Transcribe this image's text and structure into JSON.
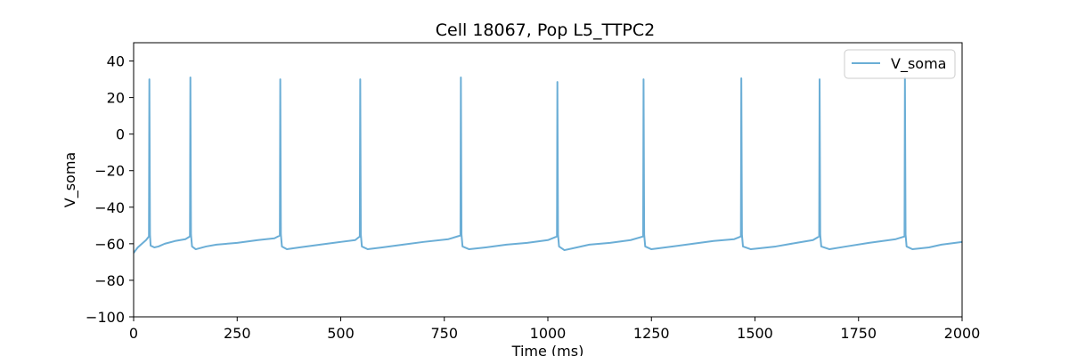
{
  "chart_data": {
    "type": "line",
    "title": "Cell 18067, Pop L5_TTPC2",
    "xlabel": "Time (ms)",
    "ylabel": "V_soma",
    "xlim": [
      0,
      2000
    ],
    "ylim": [
      -100,
      50
    ],
    "xticks": [
      0,
      250,
      500,
      750,
      1000,
      1250,
      1500,
      1750,
      2000
    ],
    "yticks": [
      -100,
      -80,
      -60,
      -40,
      -20,
      0,
      20,
      40
    ],
    "grid": false,
    "legend_position": "top-right",
    "series": [
      {
        "name": "V_soma",
        "color": "#6baed6",
        "points": [
          [
            0,
            -65
          ],
          [
            10,
            -62
          ],
          [
            20,
            -60
          ],
          [
            30,
            -58
          ],
          [
            37,
            -56
          ],
          [
            38,
            30
          ],
          [
            39.5,
            -55
          ],
          [
            41,
            -61
          ],
          [
            50,
            -62
          ],
          [
            60,
            -61.5
          ],
          [
            75,
            -60
          ],
          [
            100,
            -58.5
          ],
          [
            125,
            -57.5
          ],
          [
            136,
            -56
          ],
          [
            137,
            31
          ],
          [
            138.5,
            -55
          ],
          [
            141,
            -61.5
          ],
          [
            150,
            -63
          ],
          [
            175,
            -61.5
          ],
          [
            200,
            -60.5
          ],
          [
            250,
            -59.5
          ],
          [
            300,
            -58
          ],
          [
            340,
            -57
          ],
          [
            353,
            -55.5
          ],
          [
            354,
            30
          ],
          [
            355.5,
            -55
          ],
          [
            358,
            -61.5
          ],
          [
            370,
            -63
          ],
          [
            400,
            -62
          ],
          [
            450,
            -60.5
          ],
          [
            500,
            -59
          ],
          [
            535,
            -58
          ],
          [
            546,
            -56
          ],
          [
            547,
            30
          ],
          [
            548.5,
            -55
          ],
          [
            551,
            -61.5
          ],
          [
            565,
            -63
          ],
          [
            600,
            -62
          ],
          [
            650,
            -60.5
          ],
          [
            700,
            -59
          ],
          [
            760,
            -57.5
          ],
          [
            789,
            -55.5
          ],
          [
            790,
            31
          ],
          [
            791.5,
            -55
          ],
          [
            794,
            -61.5
          ],
          [
            810,
            -63
          ],
          [
            850,
            -62
          ],
          [
            900,
            -60.5
          ],
          [
            950,
            -59.5
          ],
          [
            1000,
            -58
          ],
          [
            1022,
            -56
          ],
          [
            1023,
            28.5
          ],
          [
            1024.5,
            -55
          ],
          [
            1027,
            -61.5
          ],
          [
            1040,
            -63.5
          ],
          [
            1070,
            -62
          ],
          [
            1100,
            -60.5
          ],
          [
            1150,
            -59.5
          ],
          [
            1200,
            -58
          ],
          [
            1230,
            -56
          ],
          [
            1231,
            30
          ],
          [
            1232.5,
            -55
          ],
          [
            1235,
            -61.5
          ],
          [
            1250,
            -63
          ],
          [
            1300,
            -61.5
          ],
          [
            1350,
            -60
          ],
          [
            1400,
            -58.5
          ],
          [
            1450,
            -57.5
          ],
          [
            1466,
            -56
          ],
          [
            1467,
            30.5
          ],
          [
            1468.5,
            -55
          ],
          [
            1471,
            -61.5
          ],
          [
            1490,
            -63
          ],
          [
            1550,
            -61.5
          ],
          [
            1600,
            -59.5
          ],
          [
            1640,
            -58
          ],
          [
            1655,
            -56
          ],
          [
            1656,
            30
          ],
          [
            1657.5,
            -55
          ],
          [
            1660,
            -61.5
          ],
          [
            1680,
            -63
          ],
          [
            1720,
            -61.5
          ],
          [
            1775,
            -59.5
          ],
          [
            1840,
            -57.5
          ],
          [
            1861,
            -56
          ],
          [
            1862,
            31
          ],
          [
            1863.5,
            -55
          ],
          [
            1866,
            -61.5
          ],
          [
            1880,
            -63
          ],
          [
            1920,
            -62
          ],
          [
            1950,
            -60.5
          ],
          [
            2000,
            -59
          ]
        ]
      }
    ]
  }
}
